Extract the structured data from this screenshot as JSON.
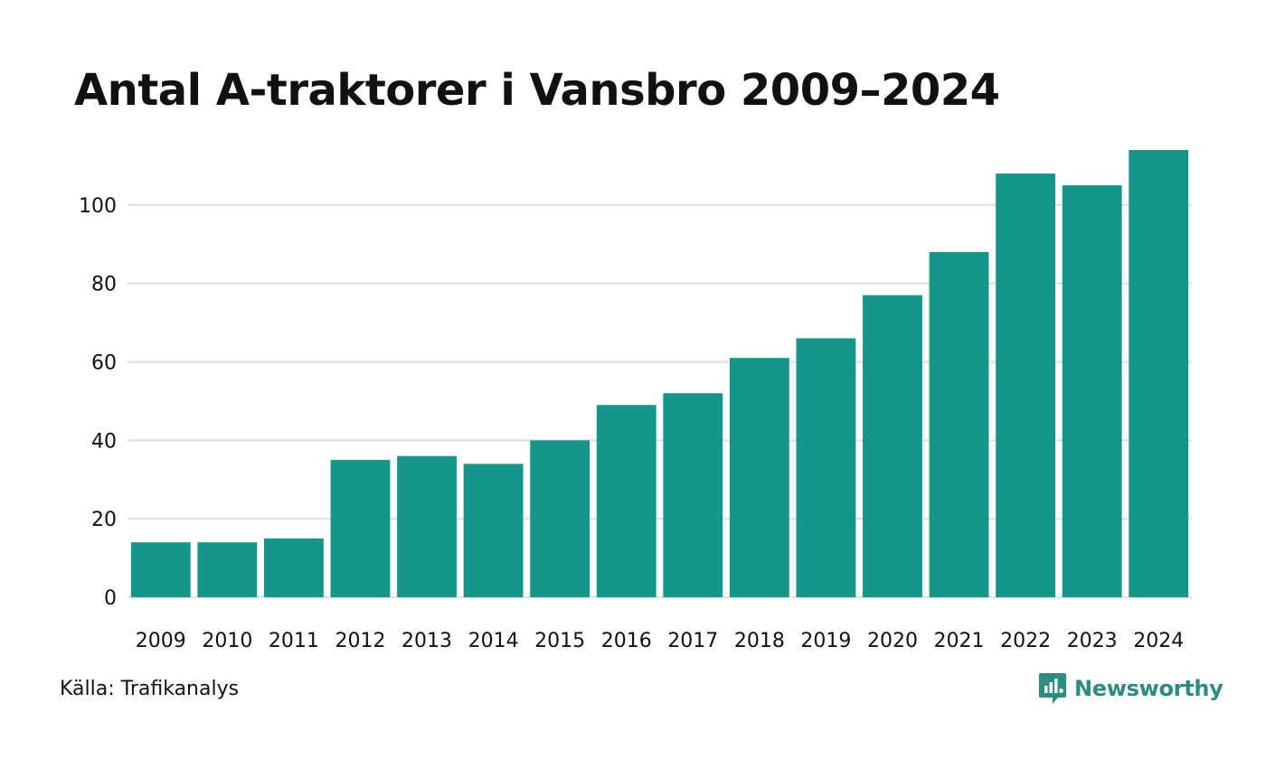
{
  "chart_data": {
    "type": "bar",
    "title": "Antal A-traktorer i Vansbro 2009–2024",
    "categories": [
      "2009",
      "2010",
      "2011",
      "2012",
      "2013",
      "2014",
      "2015",
      "2016",
      "2017",
      "2018",
      "2019",
      "2020",
      "2021",
      "2022",
      "2023",
      "2024"
    ],
    "values": [
      14,
      14,
      15,
      35,
      36,
      34,
      40,
      49,
      52,
      61,
      66,
      77,
      88,
      108,
      105,
      114
    ],
    "yticks": [
      "0",
      "20",
      "40",
      "60",
      "80",
      "100"
    ],
    "ylim": [
      0,
      114
    ],
    "xlabel": "",
    "ylabel": "",
    "grid": true,
    "bar_color": "#15968a",
    "grid_color": "#e3e3e3"
  },
  "footer": {
    "source": "Källa: Trafikanalys",
    "brand": "Newsworthy",
    "brand_icon": "newsworthy-logo-icon",
    "brand_color": "#2a8c83"
  }
}
